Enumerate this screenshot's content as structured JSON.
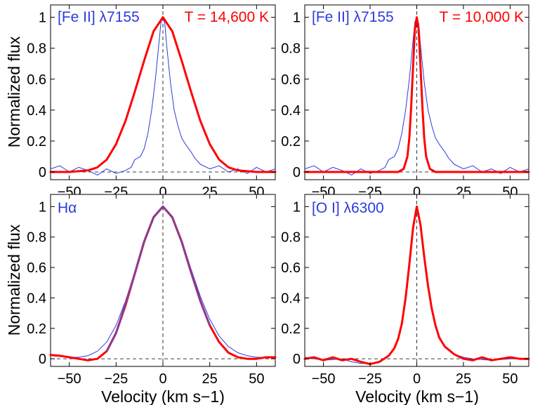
{
  "chart_data": [
    {
      "type": "line",
      "panel": "top-left",
      "xlabel": "",
      "ylabel": "Normalized flux",
      "xlim": [
        -60,
        60
      ],
      "ylim": [
        -0.05,
        1.08
      ],
      "xticks": [
        "−50",
        "−25",
        "0",
        "25",
        "50"
      ],
      "yticks": [
        "0",
        "0.2",
        "0.4",
        "0.6",
        "0.8",
        "1"
      ],
      "label": "[Fe II] λ7155",
      "label_color": "#2b3bdc",
      "annotation": "T = 14,600 K",
      "annotation_color": "#ff0000",
      "series": [
        {
          "name": "observed",
          "color": "#2b3bdc",
          "x": [
            -60,
            -55,
            -50,
            -45,
            -40,
            -35,
            -30,
            -25,
            -20,
            -17,
            -15,
            -12,
            -10,
            -8,
            -6,
            -4,
            -2,
            -1,
            0,
            1,
            2,
            4,
            6,
            8,
            10,
            12,
            15,
            17,
            20,
            25,
            30,
            35,
            40,
            45,
            50,
            55,
            60
          ],
          "y": [
            0.02,
            0.04,
            0.0,
            0.03,
            0.01,
            -0.02,
            0.02,
            -0.01,
            0.01,
            0.03,
            0.08,
            0.1,
            0.15,
            0.25,
            0.4,
            0.6,
            0.85,
            0.97,
            1.0,
            0.96,
            0.82,
            0.58,
            0.4,
            0.3,
            0.22,
            0.18,
            0.13,
            0.09,
            0.05,
            0.02,
            0.04,
            0.0,
            0.02,
            -0.01,
            0.03,
            0.0,
            0.02
          ]
        },
        {
          "name": "model",
          "color": "#ff0000",
          "x": [
            -60,
            -50,
            -40,
            -35,
            -30,
            -25,
            -20,
            -15,
            -10,
            -5,
            0,
            5,
            10,
            15,
            20,
            25,
            30,
            35,
            40,
            50,
            60
          ],
          "y": [
            0.0,
            0.0,
            0.01,
            0.03,
            0.08,
            0.18,
            0.33,
            0.52,
            0.72,
            0.91,
            1.0,
            0.91,
            0.72,
            0.52,
            0.33,
            0.18,
            0.08,
            0.03,
            0.01,
            0.0,
            0.0
          ]
        }
      ]
    },
    {
      "type": "line",
      "panel": "top-right",
      "xlabel": "",
      "ylabel": "",
      "xlim": [
        -60,
        60
      ],
      "ylim": [
        -0.05,
        1.08
      ],
      "xticks": [
        "−50",
        "−25",
        "0",
        "25",
        "50"
      ],
      "yticks": [
        "0",
        "0.2",
        "0.4",
        "0.6",
        "0.8",
        "1"
      ],
      "label": "[Fe II] λ7155",
      "label_color": "#2b3bdc",
      "annotation": "T = 10,000 K",
      "annotation_color": "#ff0000",
      "series": [
        {
          "name": "observed",
          "color": "#2b3bdc",
          "x": [
            -60,
            -55,
            -50,
            -45,
            -40,
            -35,
            -30,
            -25,
            -20,
            -17,
            -15,
            -12,
            -10,
            -8,
            -6,
            -4,
            -2,
            -1,
            0,
            1,
            2,
            4,
            6,
            8,
            10,
            12,
            15,
            17,
            20,
            25,
            30,
            35,
            40,
            45,
            50,
            55,
            60
          ],
          "y": [
            0.02,
            0.04,
            0.0,
            0.03,
            0.01,
            -0.02,
            0.02,
            -0.01,
            0.01,
            0.03,
            0.08,
            0.1,
            0.15,
            0.25,
            0.4,
            0.6,
            0.85,
            0.97,
            1.0,
            0.96,
            0.82,
            0.58,
            0.4,
            0.3,
            0.22,
            0.18,
            0.13,
            0.09,
            0.05,
            0.02,
            0.04,
            0.0,
            0.02,
            -0.01,
            0.03,
            0.0,
            0.02
          ]
        },
        {
          "name": "model",
          "color": "#ff0000",
          "x": [
            -60,
            -10,
            -7,
            -5,
            -4,
            -3,
            -2,
            -1,
            0,
            1,
            2,
            3,
            4,
            5,
            7,
            10,
            60
          ],
          "y": [
            0.0,
            0.0,
            0.02,
            0.1,
            0.22,
            0.42,
            0.68,
            0.92,
            1.0,
            0.92,
            0.68,
            0.42,
            0.22,
            0.1,
            0.02,
            0.0,
            0.0
          ]
        }
      ]
    },
    {
      "type": "line",
      "panel": "bottom-left",
      "xlabel": "Velocity (km s−1)",
      "ylabel": "Normalized flux",
      "xlim": [
        -60,
        60
      ],
      "ylim": [
        -0.05,
        1.08
      ],
      "xticks": [
        "−50",
        "−25",
        "0",
        "25",
        "50"
      ],
      "yticks": [
        "0",
        "0.2",
        "0.4",
        "0.6",
        "0.8",
        "1"
      ],
      "label": "Hα",
      "label_color": "#2b3bdc",
      "annotation": "",
      "series": [
        {
          "name": "observed",
          "color": "#2b3bdc",
          "x": [
            -60,
            -50,
            -45,
            -40,
            -35,
            -30,
            -25,
            -20,
            -15,
            -10,
            -5,
            0,
            5,
            10,
            15,
            20,
            25,
            30,
            35,
            40,
            45,
            50,
            55,
            60
          ],
          "y": [
            0.02,
            0.01,
            0.01,
            0.02,
            0.05,
            0.11,
            0.22,
            0.38,
            0.57,
            0.77,
            0.93,
            1.0,
            0.93,
            0.78,
            0.59,
            0.41,
            0.26,
            0.15,
            0.08,
            0.04,
            0.02,
            0.01,
            0.01,
            0.01
          ]
        },
        {
          "name": "model",
          "color": "#ff0000",
          "x": [
            -60,
            -55,
            -50,
            -45,
            -40,
            -35,
            -30,
            -25,
            -20,
            -15,
            -10,
            -5,
            0,
            5,
            10,
            15,
            20,
            25,
            30,
            35,
            40,
            45,
            50,
            55,
            60
          ],
          "y": [
            0.025,
            0.02,
            0.01,
            0.0,
            -0.01,
            0.0,
            0.05,
            0.17,
            0.35,
            0.56,
            0.77,
            0.93,
            1.0,
            0.93,
            0.77,
            0.57,
            0.38,
            0.22,
            0.11,
            0.04,
            0.01,
            0.0,
            0.0,
            0.01,
            0.01
          ]
        },
        {
          "name": "fit",
          "color": "#8e3b8e",
          "x": [
            -30,
            -25,
            -20,
            -15,
            -10,
            -5,
            0,
            5,
            10,
            15,
            20,
            25
          ],
          "y": [
            0.05,
            0.17,
            0.36,
            0.56,
            0.77,
            0.93,
            1.0,
            0.93,
            0.77,
            0.57,
            0.38,
            0.22
          ]
        }
      ]
    },
    {
      "type": "line",
      "panel": "bottom-right",
      "xlabel": "Velocity (km s−1)",
      "ylabel": "",
      "xlim": [
        -60,
        60
      ],
      "ylim": [
        -0.05,
        1.08
      ],
      "xticks": [
        "−50",
        "−25",
        "0",
        "25",
        "50"
      ],
      "yticks": [
        "0",
        "0.2",
        "0.4",
        "0.6",
        "0.8",
        "1"
      ],
      "label": "[O I] λ6300",
      "label_color": "#2b3bdc",
      "annotation": "",
      "series": [
        {
          "name": "observed",
          "color": "#2b3bdc",
          "x": [
            -60,
            -50,
            -40,
            -35,
            -30,
            -25,
            -20,
            -15,
            -12,
            -10,
            -8,
            -6,
            -4,
            -2,
            0,
            2,
            4,
            6,
            8,
            10,
            12,
            15,
            20,
            25,
            30,
            40,
            50,
            60
          ],
          "y": [
            0.01,
            -0.01,
            0.0,
            -0.02,
            -0.03,
            -0.03,
            -0.02,
            0.02,
            0.07,
            0.13,
            0.24,
            0.42,
            0.65,
            0.88,
            1.0,
            0.9,
            0.7,
            0.5,
            0.34,
            0.23,
            0.15,
            0.08,
            0.03,
            0.01,
            0.0,
            -0.01,
            0.0,
            0.0
          ]
        },
        {
          "name": "model",
          "color": "#ff0000",
          "x": [
            -60,
            -55,
            -50,
            -45,
            -40,
            -35,
            -30,
            -25,
            -20,
            -15,
            -12,
            -10,
            -8,
            -6,
            -4,
            -2,
            0,
            2,
            4,
            6,
            8,
            10,
            12,
            15,
            20,
            25,
            30,
            35,
            40,
            45,
            50,
            55,
            60
          ],
          "y": [
            0.0,
            0.01,
            -0.01,
            0.01,
            -0.01,
            0.0,
            -0.02,
            -0.035,
            -0.02,
            0.02,
            0.07,
            0.13,
            0.23,
            0.4,
            0.62,
            0.86,
            1.0,
            0.88,
            0.67,
            0.48,
            0.33,
            0.22,
            0.14,
            0.08,
            0.03,
            0.0,
            -0.01,
            0.01,
            -0.01,
            0.0,
            0.01,
            0.0,
            0.0
          ]
        }
      ]
    }
  ]
}
